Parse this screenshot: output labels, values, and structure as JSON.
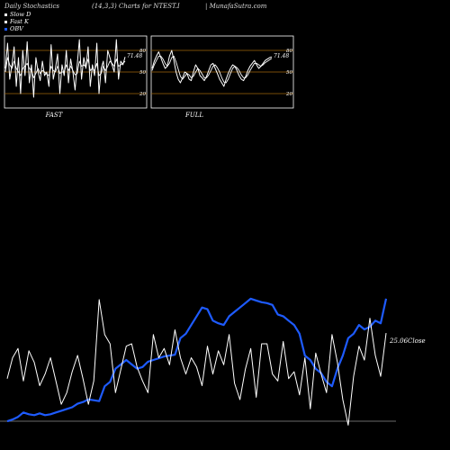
{
  "header": {
    "left": "Daily Stochastics",
    "center": "(14,3,3) Charts for NTEST.I",
    "right": "| MunafaSutra.com"
  },
  "legend": [
    {
      "label": "Slow  D",
      "color": "#ffffff"
    },
    {
      "label": "Fast K",
      "color": "#ffffff"
    },
    {
      "label": "OBV",
      "color": "#1e5bff"
    }
  ],
  "colors": {
    "obv": "#1e5bff",
    "stoch": "#ffffff",
    "grid": "#a0640a",
    "background": "#000000"
  },
  "chart_data": [
    {
      "type": "line",
      "name": "FAST",
      "title": "FAST",
      "ylim": [
        0,
        100
      ],
      "yticks": [
        20,
        50,
        80
      ],
      "last_value_label": "71.48",
      "series": [
        {
          "name": "Fast K",
          "values": [
            55,
            90,
            40,
            60,
            85,
            30,
            70,
            20,
            80,
            45,
            92,
            35,
            60,
            15,
            70,
            50,
            38,
            65,
            45,
            50,
            30,
            88,
            40,
            55,
            75,
            20,
            60,
            45,
            80,
            35,
            68,
            50,
            25,
            60,
            95,
            40,
            70,
            55,
            85,
            30,
            60,
            45,
            90,
            20,
            55,
            65,
            35,
            80,
            70,
            60,
            50,
            95,
            40,
            65,
            60,
            71
          ]
        },
        {
          "name": "Slow D",
          "values": [
            50,
            70,
            60,
            55,
            65,
            55,
            50,
            45,
            55,
            58,
            62,
            55,
            52,
            42,
            48,
            55,
            48,
            52,
            50,
            47,
            45,
            58,
            52,
            50,
            58,
            48,
            50,
            50,
            60,
            52,
            58,
            52,
            46,
            48,
            65,
            58,
            60,
            57,
            68,
            52,
            55,
            52,
            62,
            45,
            48,
            58,
            52,
            58,
            65,
            62,
            58,
            68,
            58,
            60,
            62,
            65
          ]
        }
      ]
    },
    {
      "type": "line",
      "name": "FULL",
      "title": "FULL",
      "ylim": [
        0,
        100
      ],
      "yticks": [
        20,
        50,
        80
      ],
      "last_value_label": "71.48",
      "series": [
        {
          "name": "Full K",
          "values": [
            55,
            65,
            72,
            78,
            70,
            62,
            55,
            58,
            72,
            80,
            66,
            50,
            40,
            35,
            42,
            50,
            48,
            40,
            38,
            50,
            60,
            55,
            45,
            42,
            38,
            44,
            52,
            60,
            62,
            55,
            48,
            40,
            35,
            30,
            40,
            48,
            55,
            60,
            58,
            52,
            45,
            40,
            38,
            44,
            52,
            58,
            62,
            66,
            60,
            55,
            58,
            62,
            66,
            68,
            70,
            71
          ]
        },
        {
          "name": "Full D",
          "values": [
            52,
            60,
            66,
            72,
            72,
            68,
            62,
            58,
            62,
            70,
            72,
            64,
            54,
            44,
            40,
            44,
            48,
            46,
            42,
            44,
            50,
            55,
            52,
            47,
            42,
            42,
            46,
            52,
            58,
            60,
            56,
            50,
            42,
            36,
            35,
            40,
            48,
            55,
            58,
            56,
            52,
            46,
            42,
            42,
            46,
            52,
            57,
            62,
            62,
            60,
            58,
            60,
            63,
            65,
            67,
            69
          ]
        }
      ]
    },
    {
      "type": "line",
      "name": "Close / OBV",
      "annotation": "25.06Close",
      "series": [
        {
          "name": "Close",
          "values": [
            23.1,
            24.0,
            24.4,
            23.0,
            24.3,
            23.8,
            22.8,
            23.3,
            24.0,
            23.0,
            22.0,
            22.5,
            23.4,
            24.1,
            23.1,
            22.0,
            23.0,
            26.5,
            25.0,
            24.6,
            22.5,
            23.5,
            24.5,
            24.6,
            23.6,
            23.0,
            22.5,
            25.0,
            24.0,
            24.4,
            23.7,
            25.2,
            24.0,
            23.3,
            24.0,
            23.6,
            22.8,
            24.5,
            23.3,
            24.3,
            23.7,
            25.0,
            22.9,
            22.2,
            23.5,
            24.4,
            22.3,
            24.6,
            24.6,
            23.3,
            23.0,
            24.7,
            23.1,
            23.4,
            22.4,
            24.0,
            21.8,
            24.2,
            23.3,
            22.5,
            25.0,
            23.8,
            22.2,
            21.1,
            23.2,
            24.5,
            23.9,
            25.7,
            24.1,
            23.2,
            25.06
          ]
        },
        {
          "name": "OBV",
          "values": [
            -80,
            -78,
            -75,
            -70,
            -72,
            -73,
            -71,
            -73,
            -72,
            -70,
            -68,
            -66,
            -64,
            -60,
            -58,
            -55,
            -56,
            -57,
            -40,
            -35,
            -20,
            -15,
            -10,
            -15,
            -20,
            -18,
            -12,
            -10,
            -8,
            -6,
            -5,
            -4,
            15,
            20,
            30,
            40,
            50,
            48,
            35,
            32,
            30,
            40,
            45,
            50,
            55,
            60,
            58,
            56,
            55,
            53,
            42,
            40,
            35,
            30,
            20,
            -5,
            -10,
            -20,
            -25,
            -35,
            -40,
            -20,
            -5,
            15,
            20,
            30,
            25,
            28,
            35,
            32,
            60
          ]
        }
      ]
    }
  ]
}
